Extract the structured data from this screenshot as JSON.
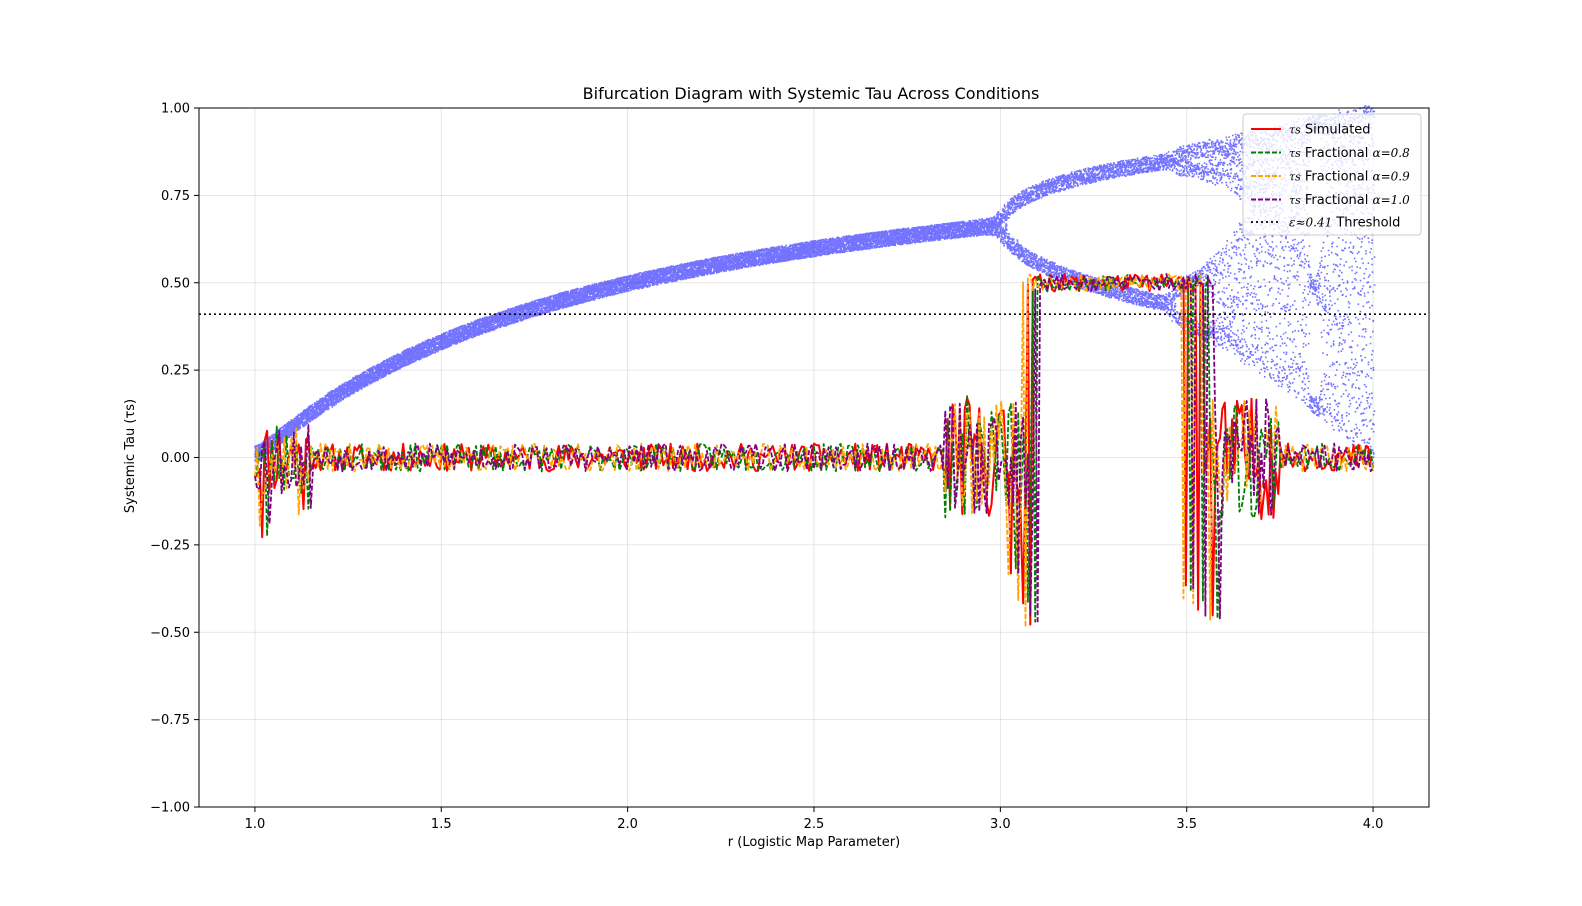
{
  "chart_data": {
    "type": "line",
    "title": "Bifurcation Diagram with Systemic Tau Across Conditions",
    "xlabel": "r (Logistic Map Parameter)",
    "ylabel": "Systemic Tau (τs)",
    "xlim": [
      0.85,
      4.15
    ],
    "ylim": [
      -1.0,
      1.0
    ],
    "xticks": [
      1.0,
      1.5,
      2.0,
      2.5,
      3.0,
      3.5,
      4.0
    ],
    "xtick_labels": [
      "1.0",
      "1.5",
      "2.0",
      "2.5",
      "3.0",
      "3.5",
      "4.0"
    ],
    "yticks": [
      -1.0,
      -0.75,
      -0.5,
      -0.25,
      0.0,
      0.25,
      0.5,
      0.75,
      1.0
    ],
    "ytick_labels": [
      "−1.00",
      "−0.75",
      "−0.50",
      "−0.25",
      "0.00",
      "0.25",
      "0.50",
      "0.75",
      "1.00"
    ],
    "grid": true,
    "legend_position": "top-right",
    "bifurcation": {
      "color": "#0000ff",
      "r_range": [
        1.0,
        4.0
      ],
      "description_points": "logistic map attractor x values for r in [1,4]"
    },
    "threshold": {
      "label": "ε≈0.41 Threshold",
      "label_prefix": "ε≈0.41",
      "label_suffix": " Threshold",
      "value": 0.41,
      "color": "#000000"
    },
    "series": [
      {
        "name": "τs Simulated",
        "prefix": "τs",
        "text": " Simulated",
        "math": "",
        "color": "#ff0000",
        "dash": "solid",
        "seed": 11,
        "shift": 0.0
      },
      {
        "name": "τs Fractional α=0.8",
        "prefix": "τs",
        "text": " Fractional ",
        "math": "α=0.8",
        "color": "#008000",
        "dash": "dashed",
        "seed": 23,
        "shift": 0.012
      },
      {
        "name": "τs Fractional α=0.9",
        "prefix": "τs",
        "text": " Fractional ",
        "math": "α=0.9",
        "color": "#ffa500",
        "dash": "dashed",
        "seed": 37,
        "shift": -0.01
      },
      {
        "name": "τs Fractional α=1.0",
        "prefix": "τs",
        "text": " Fractional ",
        "math": "α=1.0",
        "color": "#800080",
        "dash": "dashed",
        "seed": 53,
        "shift": 0.02
      }
    ],
    "tau_profile": {
      "r_start": 1.0,
      "r_end": 4.0,
      "high_band": [
        3.07,
        3.55
      ],
      "high_level": 0.5,
      "noise_low": 0.04,
      "noise_edge": 0.11,
      "spikes_down": [
        {
          "r": 3.03,
          "y": -0.34
        },
        {
          "r": 3.06,
          "y": -0.43
        },
        {
          "r": 3.08,
          "y": -0.48
        },
        {
          "r": 3.5,
          "y": -0.38
        },
        {
          "r": 3.53,
          "y": -0.43
        },
        {
          "r": 3.57,
          "y": -0.46
        },
        {
          "r": 1.02,
          "y": -0.21
        },
        {
          "r": 1.13,
          "y": -0.16
        }
      ]
    }
  }
}
